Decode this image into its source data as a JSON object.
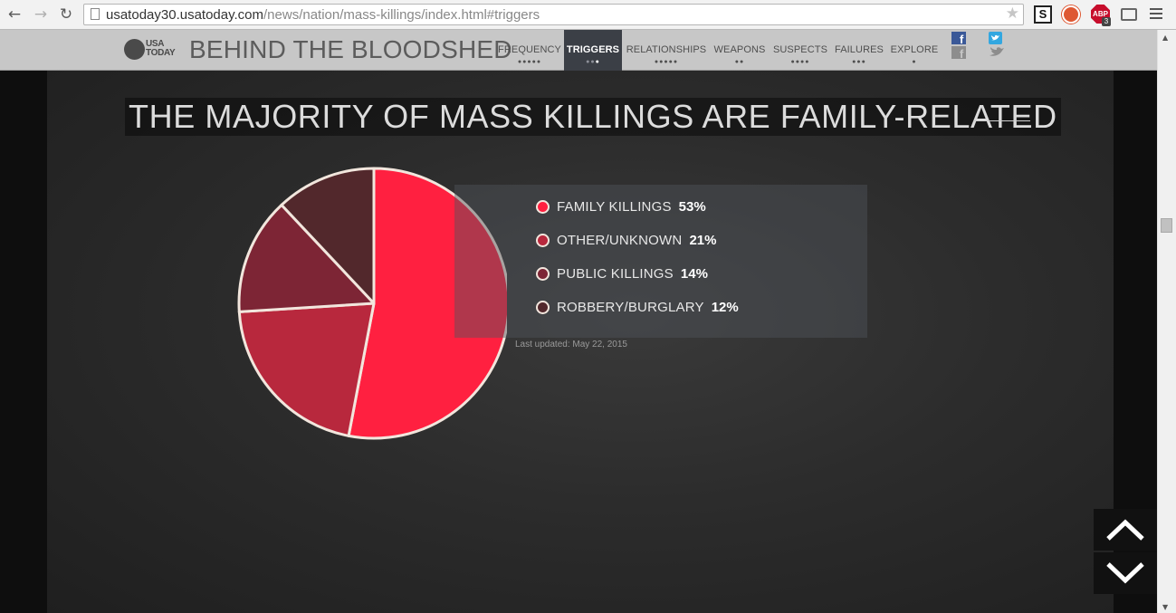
{
  "browser": {
    "url_host": "usatoday30.usatoday.com",
    "url_path": "/news/nation/mass-killings/index.html#triggers",
    "back_icon": "arrow-left-icon",
    "forward_icon": "arrow-right-icon",
    "reload_icon": "reload-icon",
    "star_icon": "star-icon",
    "extensions": {
      "s_label": "S",
      "abp_label": "ABP",
      "abp_badge": "3"
    }
  },
  "header": {
    "logo_line1": "USA",
    "logo_line2": "TODAY",
    "title": "BEHIND THE BLOODSHED",
    "nav": [
      {
        "label": "FREQUENCY",
        "dots": "●●●●●",
        "active": false
      },
      {
        "label": "TRIGGERS",
        "dots": "●●●",
        "active": true
      },
      {
        "label": "RELATIONSHIPS",
        "dots": "●●●●●",
        "active": false
      },
      {
        "label": "WEAPONS",
        "dots": "●●",
        "active": false
      },
      {
        "label": "SUSPECTS",
        "dots": "●●●●",
        "active": false
      },
      {
        "label": "FAILURES",
        "dots": "●●●",
        "active": false
      },
      {
        "label": "EXPLORE",
        "dots": "●",
        "active": false
      }
    ],
    "social": {
      "facebook_icon": "facebook-icon",
      "twitter_icon": "twitter-icon"
    }
  },
  "main": {
    "headline": "THE MAJORITY OF MASS KILLINGS ARE FAMILY-RELATED",
    "updated": "Last updated: May 22, 2015"
  },
  "chart_data": {
    "type": "pie",
    "title": "",
    "categories": [
      "FAMILY KILLINGS",
      "OTHER/UNKNOWN",
      "PUBLIC KILLINGS",
      "ROBBERY/BURGLARY"
    ],
    "values": [
      53,
      21,
      14,
      12
    ],
    "labels": [
      "53%",
      "21%",
      "14%",
      "12%"
    ],
    "colors": [
      "#ff2040",
      "#b8283d",
      "#7d2535",
      "#52282c"
    ],
    "stroke_color": "#f2e6dd",
    "legend_position": "right"
  },
  "controls": {
    "up_icon": "chevron-up-icon",
    "down_icon": "chevron-down-icon"
  }
}
